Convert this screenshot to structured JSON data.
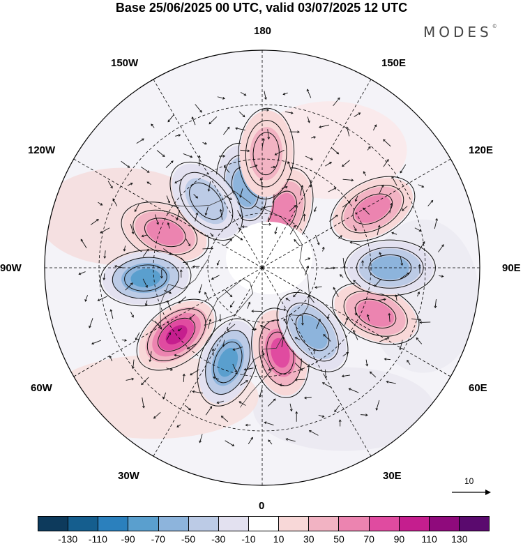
{
  "title": "Base 25/06/2025 00 UTC, valid 03/07/2025 12 UTC",
  "logo": "MODES",
  "logo_mark": "©",
  "longitude_labels": {
    "top": "180",
    "bottom": "0",
    "left": "90W",
    "right": "90E",
    "upper_left_1": "150W",
    "upper_left_2": "120W",
    "upper_right_1": "150E",
    "upper_right_2": "120E",
    "lower_left_1": "60W",
    "lower_left_2": "30W",
    "lower_right_1": "60E",
    "lower_right_2": "30E"
  },
  "vector_scale_label": "10",
  "colorbar": {
    "colors": [
      "#0d3a5c",
      "#155e8e",
      "#2b80bd",
      "#5a9fce",
      "#8db4dc",
      "#bccbe6",
      "#e3e1f0",
      "#ffffff",
      "#f8d8d8",
      "#f2b3c3",
      "#ec84b0",
      "#e04ba0",
      "#c51e8e",
      "#8f0a7c",
      "#5a0a6e"
    ],
    "tick_labels": [
      "-130",
      "-110",
      "-90",
      "-70",
      "-50",
      "-30",
      "-10",
      "10",
      "30",
      "50",
      "70",
      "90",
      "110",
      "130"
    ]
  },
  "anomaly_centers": [
    {
      "lon": -110,
      "lat": 52,
      "sign": "positive",
      "value": 80
    },
    {
      "lon": -85,
      "lat": 47,
      "sign": "negative",
      "value": -110
    },
    {
      "lon": -52,
      "lat": 50,
      "sign": "positive",
      "value": 130
    },
    {
      "lon": -20,
      "lat": 53,
      "sign": "negative",
      "value": -100
    },
    {
      "lon": 12,
      "lat": 58,
      "sign": "positive",
      "value": 110
    },
    {
      "lon": 38,
      "lat": 60,
      "sign": "negative",
      "value": -90
    },
    {
      "lon": 68,
      "lat": 45,
      "sign": "positive",
      "value": 80
    },
    {
      "lon": 90,
      "lat": 43,
      "sign": "negative",
      "value": -70
    },
    {
      "lon": 118,
      "lat": 44,
      "sign": "positive",
      "value": 80
    },
    {
      "lon": 160,
      "lat": 68,
      "sign": "positive",
      "value": 70
    },
    {
      "lon": -168,
      "lat": 60,
      "sign": "negative",
      "value": -70
    },
    {
      "lon": -140,
      "lat": 58,
      "sign": "negative",
      "value": -50
    },
    {
      "lon": 178,
      "lat": 48,
      "sign": "positive",
      "value": 40
    }
  ]
}
